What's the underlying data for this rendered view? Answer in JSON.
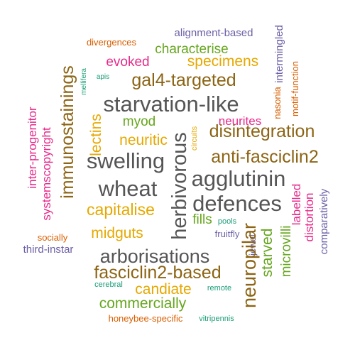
{
  "words": [
    {
      "text": "alignment-based",
      "color": "#6b5fa6"
    },
    {
      "text": "divergences",
      "color": "#d95f02"
    },
    {
      "text": "characterise",
      "color": "#66a61e"
    },
    {
      "text": "intermingled",
      "color": "#6b5fa6"
    },
    {
      "text": "evoked",
      "color": "#e7298a"
    },
    {
      "text": "specimens",
      "color": "#e6a800"
    },
    {
      "text": "apis",
      "color": "#1b9e77"
    },
    {
      "text": "mellifera",
      "color": "#1b9e77"
    },
    {
      "text": "immunostainings",
      "color": "#8c6414"
    },
    {
      "text": "gal4-targeted",
      "color": "#8c6414"
    },
    {
      "text": "nasonia",
      "color": "#d95f02"
    },
    {
      "text": "motif-function",
      "color": "#d95f02"
    },
    {
      "text": "starvation-like",
      "color": "#555555"
    },
    {
      "text": "inter-progenitor",
      "color": "#e7298a"
    },
    {
      "text": "systemscopyright",
      "color": "#e7298a"
    },
    {
      "text": "lectins",
      "color": "#e6a800"
    },
    {
      "text": "myod",
      "color": "#66a61e"
    },
    {
      "text": "neurites",
      "color": "#e7298a"
    },
    {
      "text": "neuritic",
      "color": "#e6a800"
    },
    {
      "text": "circuits",
      "color": "#e6a800"
    },
    {
      "text": "herbivorous",
      "color": "#555555"
    },
    {
      "text": "disintegration",
      "color": "#8c6414"
    },
    {
      "text": "anti-fasciclin2",
      "color": "#8c6414"
    },
    {
      "text": "swelling",
      "color": "#555555"
    },
    {
      "text": "agglutinin",
      "color": "#555555"
    },
    {
      "text": "wheat",
      "color": "#555555"
    },
    {
      "text": "defences",
      "color": "#555555"
    },
    {
      "text": "comparatively",
      "color": "#6b5fa6"
    },
    {
      "text": "labelled",
      "color": "#e7298a"
    },
    {
      "text": "distortion",
      "color": "#e7298a"
    },
    {
      "text": "capitalise",
      "color": "#e6a800"
    },
    {
      "text": "fills",
      "color": "#66a61e"
    },
    {
      "text": "pools",
      "color": "#1b9e77"
    },
    {
      "text": "midguts",
      "color": "#e6a800"
    },
    {
      "text": "socially",
      "color": "#d95f02"
    },
    {
      "text": "fruitfly",
      "color": "#6b5fa6"
    },
    {
      "text": "jewel",
      "color": "#6b5fa6"
    },
    {
      "text": "third-instar",
      "color": "#6b5fa6"
    },
    {
      "text": "neuropilar",
      "color": "#8c6414"
    },
    {
      "text": "starved",
      "color": "#66a61e"
    },
    {
      "text": "microvilli",
      "color": "#66a61e"
    },
    {
      "text": "arborisations",
      "color": "#555555"
    },
    {
      "text": "fasciclin2-based",
      "color": "#8c6414"
    },
    {
      "text": "cerebral",
      "color": "#1b9e77"
    },
    {
      "text": "candiate",
      "color": "#e6a800"
    },
    {
      "text": "remote",
      "color": "#1b9e77"
    },
    {
      "text": "commercially",
      "color": "#66a61e"
    },
    {
      "text": "honeybee-specific",
      "color": "#d95f02"
    },
    {
      "text": "vitripennis",
      "color": "#1b9e77"
    }
  ]
}
